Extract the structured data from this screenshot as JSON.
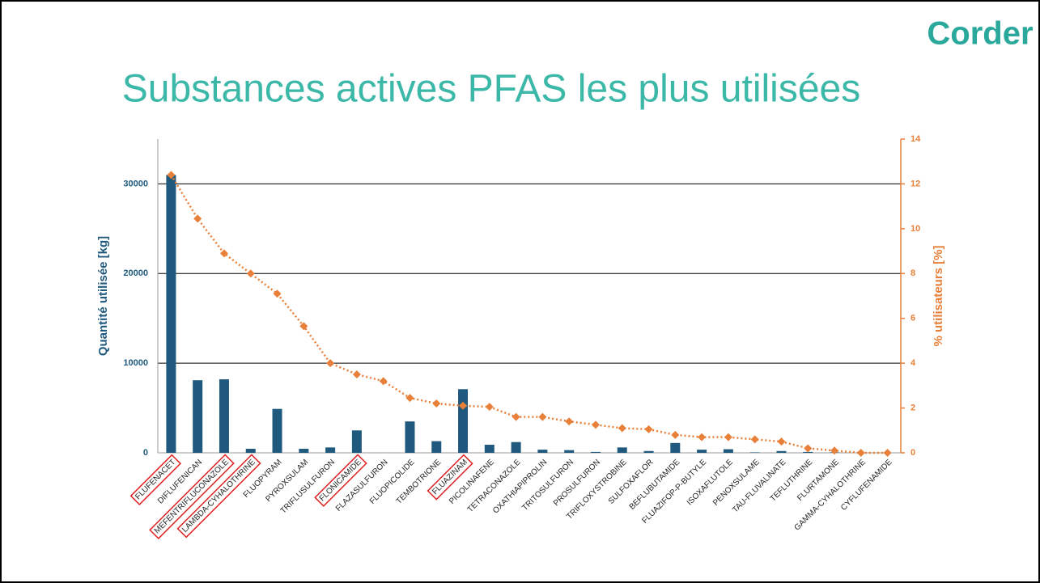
{
  "logo": "Corder",
  "chart_data": {
    "type": "bar",
    "title": "Substances actives PFAS les plus utilisées",
    "y_label": "Quantité utilisée [kg]",
    "y2_label": "% utilisateurs [%]",
    "categories": [
      "FLUFENACET",
      "DIFLUFENICAN",
      "MEFENTRIFLUCONAZOLE",
      "LAMBDA-CYHALOTHRINE",
      "FLUOPYRAM",
      "PYROXSULAM",
      "TRIFLUSULFURON",
      "FLONICAMIDE",
      "FLAZASULFURON",
      "FLUOPICOLIDE",
      "TEMBOTRIONE",
      "FLUAZINAM",
      "PICOLINAFENE",
      "TETRACONAZOLE",
      "OXATHIAPIPROLIN",
      "TRITOSULFURON",
      "PROSULFURON",
      "TRIFLOXYSTROBINE",
      "SULFOXAFLOR",
      "BEFLUBUTAMIDE",
      "FLUAZIFOP-P-BUTYLE",
      "ISOXAFLUTOLE",
      "PENOXSULAME",
      "TAU-FLUVALINATE",
      "TEFLUTHRINE",
      "FLURTAMONE",
      "GAMMA-CYHALOTHRINE",
      "CYFLUFENAMIDE"
    ],
    "highlighted": [
      0,
      2,
      3,
      7,
      11
    ],
    "series": [
      {
        "type": "bar",
        "color": "#1f5a7e",
        "axis": "y",
        "values": [
          31000,
          8100,
          8200,
          450,
          4900,
          450,
          600,
          2500,
          0,
          3500,
          1300,
          7100,
          900,
          1200,
          350,
          300,
          100,
          600,
          200,
          1100,
          350,
          400,
          50,
          200,
          100,
          50,
          0,
          0
        ]
      },
      {
        "type": "line",
        "color": "#e8803a",
        "axis": "y2",
        "values": [
          12.4,
          10.45,
          8.9,
          8.0,
          7.1,
          5.65,
          4.0,
          3.5,
          3.2,
          2.45,
          2.2,
          2.1,
          2.05,
          1.6,
          1.6,
          1.4,
          1.25,
          1.1,
          1.05,
          0.8,
          0.7,
          0.7,
          0.6,
          0.5,
          0.2,
          0.1,
          0.0,
          0.0
        ]
      }
    ],
    "ylim": [
      0,
      35000
    ],
    "yticks": [
      0,
      10000,
      20000,
      30000
    ],
    "y2lim": [
      0,
      14
    ],
    "y2ticks": [
      0,
      2,
      4,
      6,
      8,
      10,
      12,
      14
    ],
    "grid": true
  }
}
